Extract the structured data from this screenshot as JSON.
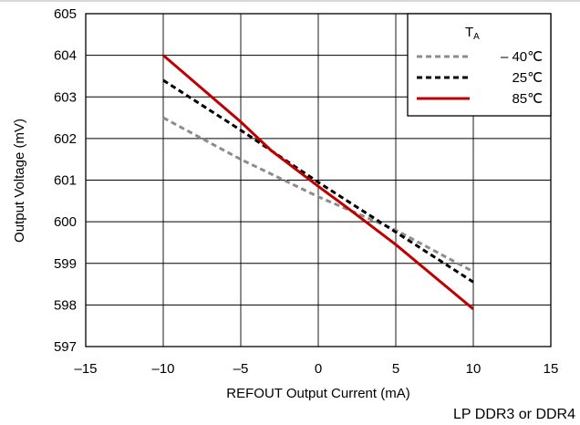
{
  "chart_data": {
    "type": "line",
    "xlabel": "REFOUT Output Current (mA)",
    "ylabel": "Output Voltage (mV)",
    "xlim": [
      -15,
      15
    ],
    "ylim": [
      597,
      605
    ],
    "x_ticks": [
      -15,
      -10,
      -5,
      0,
      5,
      10,
      15
    ],
    "x_tick_labels": [
      "–15",
      "–10",
      "–5",
      "0",
      "5",
      "10",
      "15"
    ],
    "y_ticks": [
      597,
      598,
      599,
      600,
      601,
      602,
      603,
      604,
      605
    ],
    "y_tick_labels": [
      "597",
      "598",
      "599",
      "600",
      "601",
      "602",
      "603",
      "604",
      "605"
    ],
    "grid": true,
    "legend": {
      "title_main": "T",
      "title_sub": "A",
      "position": "top-right"
    },
    "series": [
      {
        "name": "– 40℃",
        "color": "#8c8c8c",
        "dash": "dashed",
        "points": [
          [
            -10,
            602.5
          ],
          [
            -5,
            601.5
          ],
          [
            0,
            600.6
          ],
          [
            5,
            599.8
          ],
          [
            10,
            598.8
          ]
        ]
      },
      {
        "name": "25℃",
        "color": "#000000",
        "dash": "dashed",
        "points": [
          [
            -10,
            603.4
          ],
          [
            -5,
            602.2
          ],
          [
            0,
            600.95
          ],
          [
            5,
            599.75
          ],
          [
            10,
            598.55
          ]
        ]
      },
      {
        "name": "85℃",
        "color": "#c00000",
        "dash": "solid",
        "points": [
          [
            -10,
            604.0
          ],
          [
            -5,
            602.4
          ],
          [
            -3,
            601.7
          ],
          [
            0,
            600.85
          ],
          [
            2,
            600.3
          ],
          [
            5,
            599.45
          ],
          [
            10,
            597.9
          ]
        ]
      }
    ],
    "footnote": "LP DDR3 or DDR4"
  }
}
